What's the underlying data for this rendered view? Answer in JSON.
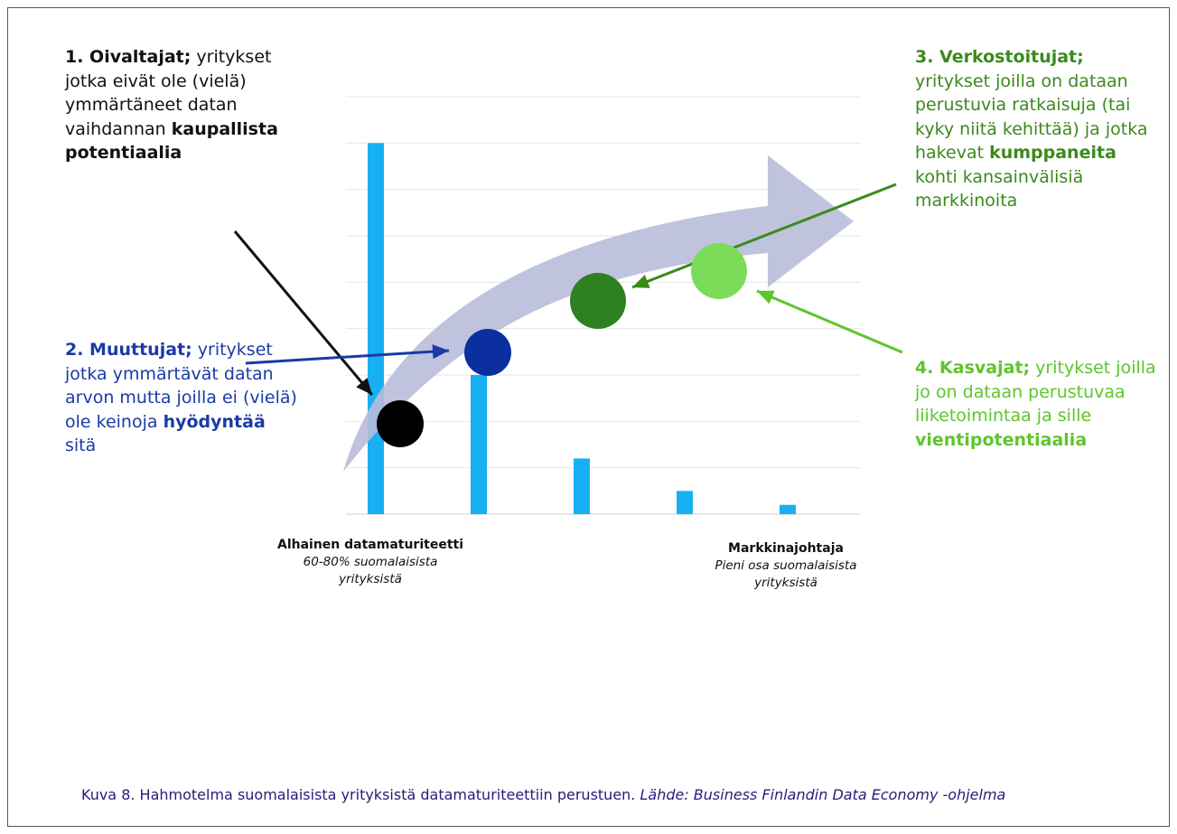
{
  "chart_data": {
    "type": "bar",
    "categories": [
      "",
      "",
      "",
      "",
      ""
    ],
    "values": [
      80,
      30,
      12,
      5,
      2
    ],
    "ylim": [
      0,
      90
    ],
    "grid": true,
    "bar_color": "#17b0f2"
  },
  "groups": {
    "oivaltajat": {
      "title": "1. Oivaltajat;",
      "text_a": " yritykset jotka eivät ole (vielä) ymmärtäneet datan vaihdannan ",
      "bold": "kaupallista potentiaalia",
      "text_b": "",
      "color": "#111111"
    },
    "muuttujat": {
      "title": "2. Muuttujat;",
      "text_a": " yritykset jotka ymmärtävät datan arvon mutta joilla ei (vielä) ole keinoja ",
      "bold": "hyödyntää",
      "text_b": " sitä",
      "color": "#1b3aa8"
    },
    "verkostoitujat": {
      "title": "3. Verkostoitujat;",
      "text_a": " yritykset joilla on dataan perustuvia ratkaisuja (tai kyky niitä kehittää) ja jotka hakevat ",
      "bold": "kumppaneita",
      "text_b": " kohti kansainvälisiä markkinoita",
      "color": "#3a8a1c"
    },
    "kasvajat": {
      "title": "4. Kasvajat;",
      "text_a": " yritykset joilla jo on dataan perustuvaa liiketoimintaa ja sille ",
      "bold": "vientipotentiaalia",
      "text_b": "",
      "color": "#5ec52c"
    }
  },
  "dot_colors": {
    "oivaltajat": "#000000",
    "muuttujat": "#0b2ea0",
    "verkostoitujat": "#2e8020",
    "kasvajat": "#7bdc5a"
  },
  "arrow_color": "#b9bcd9",
  "axis_labels": {
    "left_title": "Alhainen datamaturiteetti",
    "left_sub": "60-80% suomalaisista yrityksistä",
    "right_title": "Markkinajohtaja",
    "right_sub": "Pieni osa suomalaisista yrityksistä"
  },
  "caption": {
    "text": "Kuva 8. Hahmotelma suomalaisista yrityksistä datamaturiteettiin perustuen. ",
    "source": "Lähde: Business Finlandin Data Economy -ohjelma"
  }
}
